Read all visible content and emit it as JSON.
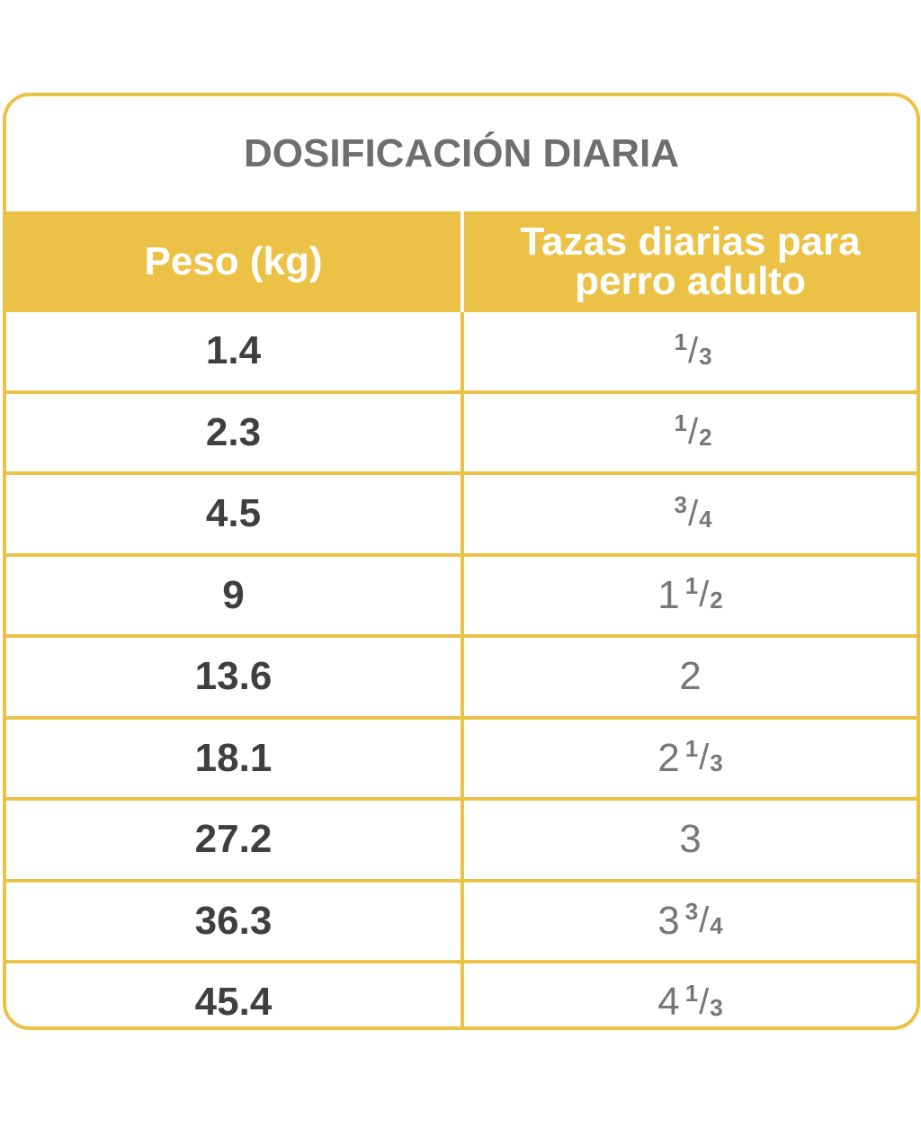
{
  "header": {
    "title": "DOSIFICACIÓN DIARIA"
  },
  "table": {
    "columns": [
      "Peso (kg)",
      "Tazas diarias para perro adulto"
    ],
    "rows": [
      [
        "1.4",
        {
          "numerator": "1",
          "denominator": "3"
        }
      ],
      [
        "2.3",
        {
          "numerator": "1",
          "denominator": "2"
        }
      ],
      [
        "4.5",
        {
          "numerator": "3",
          "denominator": "4"
        }
      ],
      [
        "9",
        {
          "whole": "1",
          "numerator": "1",
          "denominator": "2"
        }
      ],
      [
        "13.6",
        {
          "whole": "2"
        }
      ],
      [
        "18.1",
        {
          "whole": "2",
          "numerator": "1",
          "denominator": "3"
        }
      ],
      [
        "27.2",
        {
          "whole": "3"
        }
      ],
      [
        "36.3",
        {
          "whole": "3",
          "numerator": "3",
          "denominator": "4"
        }
      ],
      [
        "45.4",
        {
          "whole": "4",
          "numerator": "1",
          "denominator": "3"
        }
      ]
    ]
  }
}
